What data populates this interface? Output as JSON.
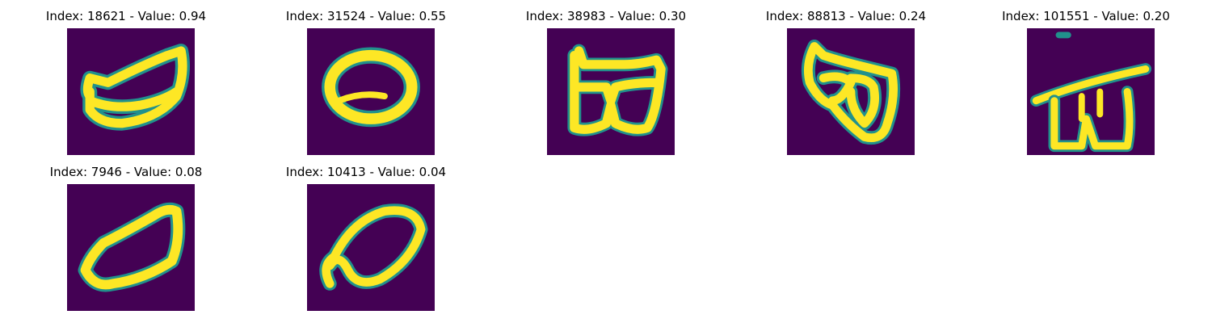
{
  "colors": {
    "background": "#440154",
    "stroke_mid": "#21918c",
    "stroke_high": "#fde725"
  },
  "panels": [
    {
      "index": "18621",
      "value": "0.94",
      "title": "Index: 18621 - Value: 0.94"
    },
    {
      "index": "31524",
      "value": "0.55",
      "title": "Index: 31524 - Value: 0.55"
    },
    {
      "index": "38983",
      "value": "0.30",
      "title": "Index: 38983 - Value: 0.30"
    },
    {
      "index": "88813",
      "value": "0.24",
      "title": "Index: 88813 - Value: 0.24"
    },
    {
      "index": "101551",
      "value": "0.20",
      "title": "Index: 101551 - Value: 0.20"
    },
    {
      "index": "7946",
      "value": "0.08",
      "title": "Index: 7946 - Value: 0.08"
    },
    {
      "index": "10413",
      "value": "0.04",
      "title": "Index: 10413 - Value: 0.04"
    }
  ]
}
